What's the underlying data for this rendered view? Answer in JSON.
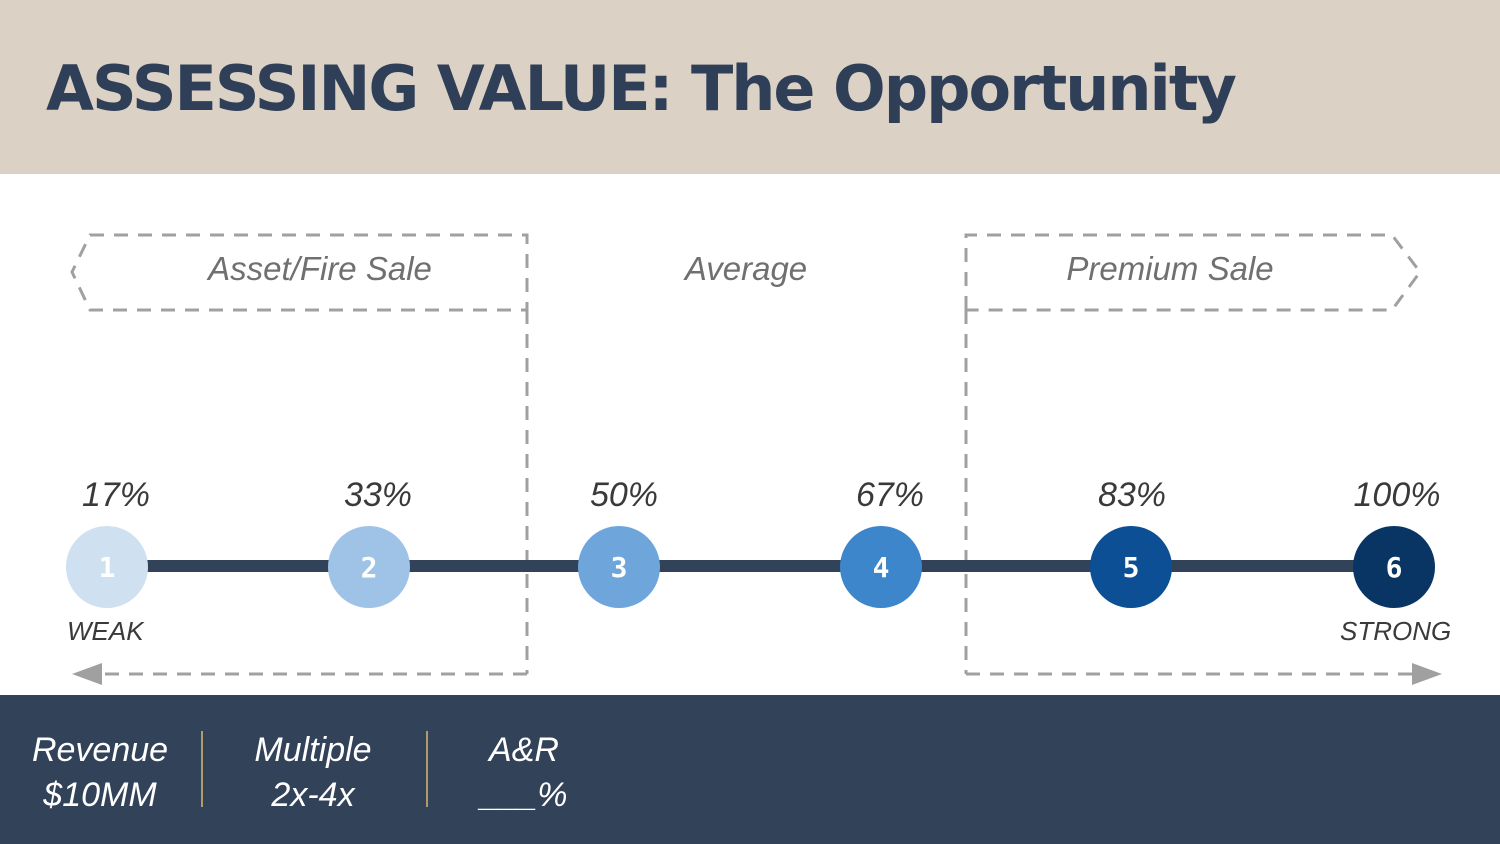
{
  "header": {
    "title": "ASSESSING VALUE: The Opportunity"
  },
  "zones": {
    "left": "Asset/Fire Sale",
    "middle": "Average",
    "right": "Premium Sale"
  },
  "scale": {
    "steps": [
      {
        "number": "1",
        "percent": "17%",
        "color": "#cfe0f1"
      },
      {
        "number": "2",
        "percent": "33%",
        "color": "#9fc3e7"
      },
      {
        "number": "3",
        "percent": "50%",
        "color": "#6ea6dc"
      },
      {
        "number": "4",
        "percent": "67%",
        "color": "#3d86cb"
      },
      {
        "number": "5",
        "percent": "83%",
        "color": "#0d4f94"
      },
      {
        "number": "6",
        "percent": "100%",
        "color": "#083563"
      }
    ],
    "low_label": "WEAK",
    "high_label": "STRONG",
    "line_color": "#324259",
    "dash_color": "#a0a0a0"
  },
  "footer": {
    "metrics": [
      {
        "label": "Revenue",
        "value": "$10MM"
      },
      {
        "label": "Multiple",
        "value": "2x-4x"
      },
      {
        "label": "A&R",
        "value": "___%"
      }
    ]
  }
}
